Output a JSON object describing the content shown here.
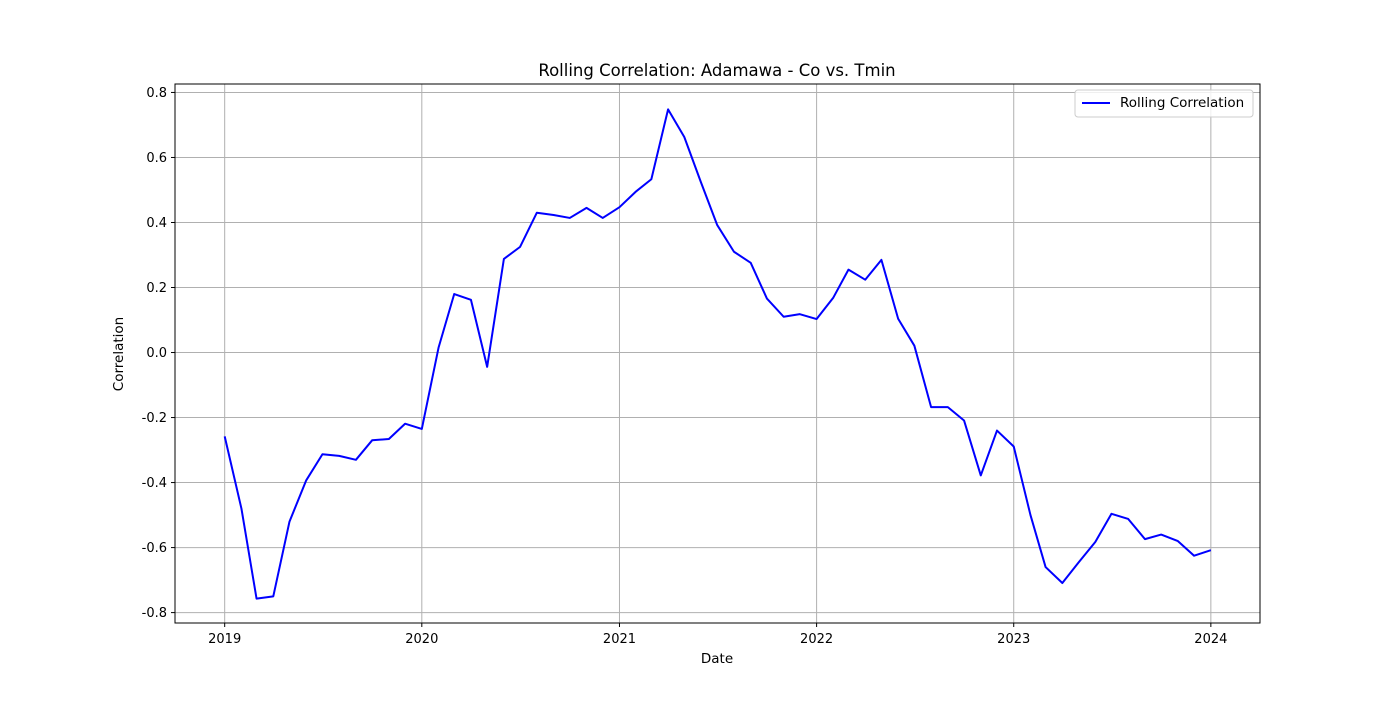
{
  "chart_data": {
    "type": "line",
    "title": "Rolling Correlation: Adamawa - Co vs. Tmin",
    "xlabel": "Date",
    "ylabel": "Correlation",
    "x_ticks": [
      "2019",
      "2020",
      "2021",
      "2022",
      "2023",
      "2024"
    ],
    "y_ticks": [
      "-0.8",
      "-0.6",
      "-0.4",
      "-0.2",
      "0.0",
      "0.2",
      "0.4",
      "0.6",
      "0.8"
    ],
    "ylim": [
      -0.832,
      0.826
    ],
    "xlim": [
      "2018-10-01",
      "2024-04-01"
    ],
    "grid": true,
    "legend_position": "upper right",
    "series": [
      {
        "name": "Rolling Correlation",
        "color": "#0000ff",
        "x": [
          "2019-01",
          "2019-02",
          "2019-03",
          "2019-04",
          "2019-05",
          "2019-06",
          "2019-07",
          "2019-08",
          "2019-09",
          "2019-10",
          "2019-11",
          "2019-12",
          "2020-01",
          "2020-02",
          "2020-03",
          "2020-04",
          "2020-05",
          "2020-06",
          "2020-07",
          "2020-08",
          "2020-09",
          "2020-10",
          "2020-11",
          "2020-12",
          "2021-01",
          "2021-02",
          "2021-03",
          "2021-04",
          "2021-05",
          "2021-06",
          "2021-07",
          "2021-08",
          "2021-09",
          "2021-10",
          "2021-11",
          "2021-12",
          "2022-01",
          "2022-02",
          "2022-03",
          "2022-04",
          "2022-05",
          "2022-06",
          "2022-07",
          "2022-08",
          "2022-09",
          "2022-10",
          "2022-11",
          "2022-12",
          "2023-01",
          "2023-02",
          "2023-03",
          "2023-04",
          "2023-05",
          "2023-06",
          "2023-07",
          "2023-08",
          "2023-09",
          "2023-10",
          "2023-11",
          "2023-12",
          "2024-01"
        ],
        "values": [
          -0.258,
          -0.48,
          -0.757,
          -0.75,
          -0.52,
          -0.393,
          -0.313,
          -0.318,
          -0.33,
          -0.27,
          -0.266,
          -0.219,
          -0.235,
          0.015,
          0.18,
          0.162,
          -0.044,
          0.288,
          0.325,
          0.43,
          0.423,
          0.414,
          0.445,
          0.414,
          0.447,
          0.496,
          0.533,
          0.748,
          0.663,
          0.523,
          0.392,
          0.31,
          0.276,
          0.166,
          0.11,
          0.118,
          0.103,
          0.169,
          0.255,
          0.224,
          0.285,
          0.104,
          0.021,
          -0.168,
          -0.168,
          -0.209,
          -0.378,
          -0.24,
          -0.289,
          -0.5,
          -0.66,
          -0.709,
          -0.646,
          -0.583,
          -0.496,
          -0.512,
          -0.574,
          -0.56,
          -0.58,
          -0.625,
          -0.608
        ]
      }
    ]
  }
}
